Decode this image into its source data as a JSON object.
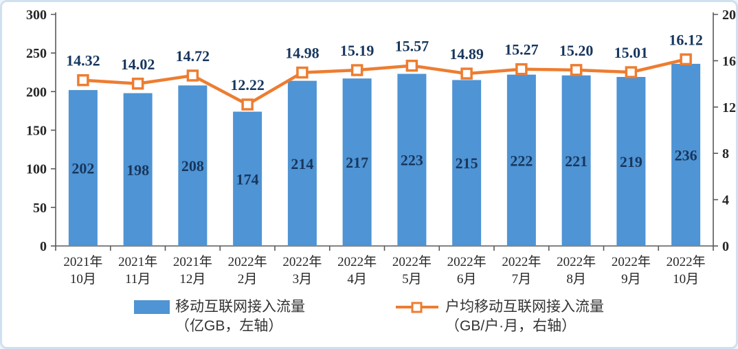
{
  "frame": {
    "border_color": "#cfe0f1",
    "background": "#ffffff"
  },
  "legend": {
    "bar": {
      "label_line1": "移动互联网接入流量",
      "label_line2": "（亿GB，左轴）"
    },
    "line": {
      "label_line1": "户均移动互联网接入流量",
      "label_line2": "（GB/户·月，右轴）"
    }
  },
  "chart_data": {
    "type": "combo",
    "categories": [
      [
        "2021年",
        "10月"
      ],
      [
        "2021年",
        "11月"
      ],
      [
        "2021年",
        "12月"
      ],
      [
        "2022年",
        "2月"
      ],
      [
        "2022年",
        "3月"
      ],
      [
        "2022年",
        "4月"
      ],
      [
        "2022年",
        "5月"
      ],
      [
        "2022年",
        "6月"
      ],
      [
        "2022年",
        "7月"
      ],
      [
        "2022年",
        "8月"
      ],
      [
        "2022年",
        "9月"
      ],
      [
        "2022年",
        "10月"
      ]
    ],
    "series": [
      {
        "name": "移动互联网接入流量（亿GB，左轴）",
        "type": "bar",
        "axis": "left",
        "color": "#4f94d4",
        "values": [
          202,
          198,
          208,
          174,
          214,
          217,
          223,
          215,
          222,
          221,
          219,
          236
        ],
        "labels": [
          "202",
          "198",
          "208",
          "174",
          "214",
          "217",
          "223",
          "215",
          "222",
          "221",
          "219",
          "236"
        ]
      },
      {
        "name": "户均移动互联网接入流量（GB/户·月，右轴）",
        "type": "line",
        "axis": "right",
        "color": "#ed7d31",
        "marker_fill": "#ffffff",
        "values": [
          14.32,
          14.02,
          14.72,
          12.22,
          14.98,
          15.19,
          15.57,
          14.89,
          15.27,
          15.2,
          15.01,
          16.12
        ],
        "labels": [
          "14.32",
          "14.02",
          "14.72",
          "12.22",
          "14.98",
          "15.19",
          "15.57",
          "14.89",
          "15.27",
          "15.20",
          "15.01",
          "16.12"
        ]
      }
    ],
    "left_axis": {
      "min": 0,
      "max": 300,
      "step": 50,
      "ticks": [
        "0",
        "50",
        "100",
        "150",
        "200",
        "250",
        "300"
      ]
    },
    "right_axis": {
      "min": 0,
      "max": 20,
      "step": 4,
      "ticks": [
        "0",
        "4",
        "8",
        "12",
        "16",
        "20"
      ]
    },
    "grid": false,
    "legend_position": "bottom",
    "data_label_color": "#17365d",
    "axis_line_color": "#595959",
    "axis_text_color": "#262626"
  }
}
